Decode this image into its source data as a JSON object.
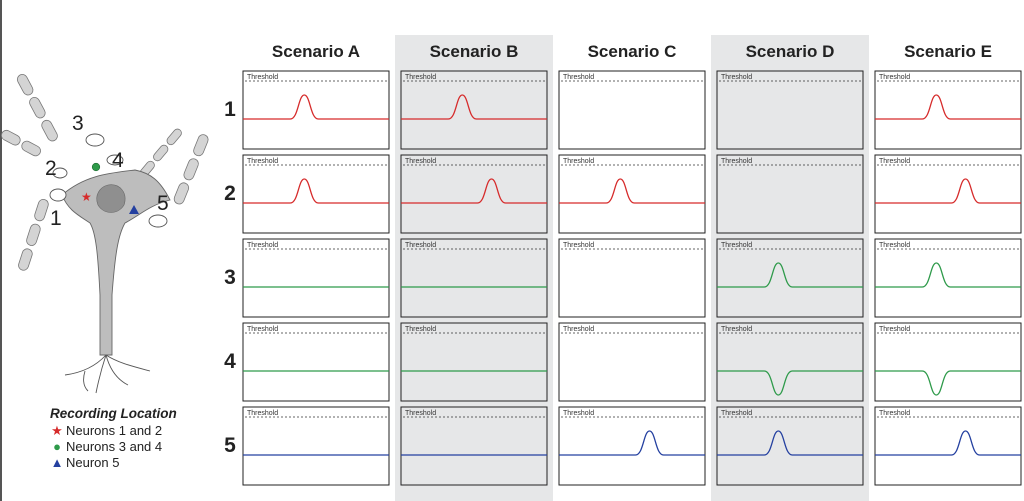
{
  "scenarios": [
    "Scenario A",
    "Scenario B",
    "Scenario C",
    "Scenario D",
    "Scenario E"
  ],
  "rows": [
    "1",
    "2",
    "3",
    "4",
    "5"
  ],
  "threshold_label": "Threshold",
  "neuron_labels": [
    "1",
    "2",
    "3",
    "4",
    "5"
  ],
  "legend": {
    "title": "Recording Location",
    "items": [
      {
        "label": "Neurons 1 and 2",
        "marker": "star-icon",
        "color": "#d62b2b"
      },
      {
        "label": "Neurons 3 and 4",
        "marker": "circle-icon",
        "color": "#2e9a4a"
      },
      {
        "label": "Neuron 5",
        "marker": "triangle-icon",
        "color": "#2440a0"
      }
    ]
  },
  "colors": {
    "neurons_1_2": "#d62b2b",
    "neurons_3_4": "#2e9a4a",
    "neuron_5": "#2440a0",
    "shaded_column": "#e6e7e8"
  },
  "shaded_columns": [
    1,
    3
  ],
  "traces": [
    [
      {
        "type": "epsp",
        "peak": 0.42
      },
      {
        "type": "epsp",
        "peak": 0.42
      },
      {
        "type": "flat"
      },
      {
        "type": "flat"
      },
      {
        "type": "flat"
      }
    ],
    [
      {
        "type": "epsp",
        "peak": 0.42
      },
      {
        "type": "epsp",
        "peak": 0.62
      },
      {
        "type": "flat"
      },
      {
        "type": "flat"
      },
      {
        "type": "flat"
      }
    ],
    [
      {
        "type": "none"
      },
      {
        "type": "epsp",
        "peak": 0.42
      },
      {
        "type": "none"
      },
      {
        "type": "none"
      },
      {
        "type": "epsp",
        "peak": 0.62
      }
    ],
    [
      {
        "type": "none"
      },
      {
        "type": "none"
      },
      {
        "type": "epsp",
        "peak": 0.42
      },
      {
        "type": "ipsp",
        "peak": 0.42
      },
      {
        "type": "epsp",
        "peak": 0.42
      }
    ],
    [
      {
        "type": "epsp",
        "peak": 0.42
      },
      {
        "type": "epsp",
        "peak": 0.62
      },
      {
        "type": "epsp",
        "peak": 0.42
      },
      {
        "type": "ipsp",
        "peak": 0.42
      },
      {
        "type": "epsp",
        "peak": 0.62
      }
    ]
  ]
}
